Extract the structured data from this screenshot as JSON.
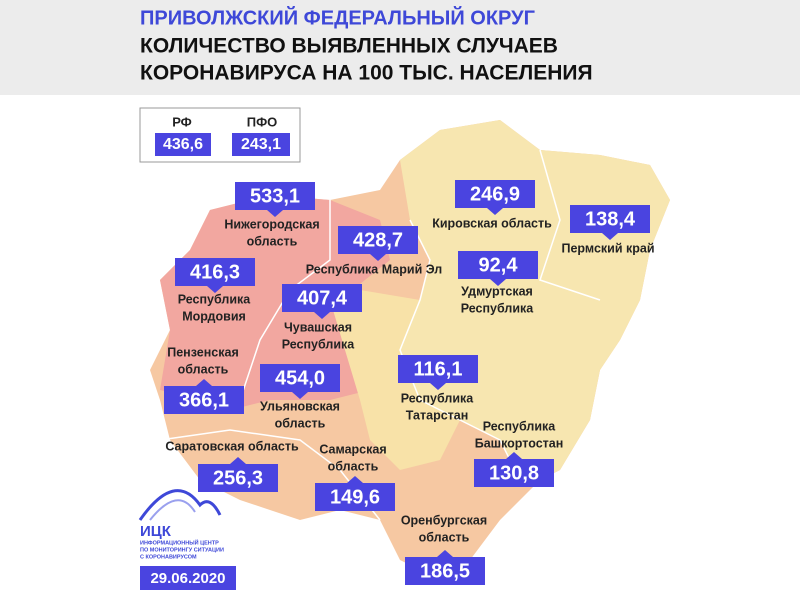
{
  "header": {
    "title": "ПРИВОЛЖСКИЙ ФЕДЕРАЛЬНЫЙ ОКРУГ",
    "subtitle": [
      "КОЛИЧЕСТВО ВЫЯВЛЕННЫХ СЛУЧАЕВ",
      "КОРОНАВИРУСА НА 100 ТЫС. НАСЕЛЕНИЯ"
    ]
  },
  "summary": [
    {
      "label": "РФ",
      "value": "436,6"
    },
    {
      "label": "ПФО",
      "value": "243,1"
    }
  ],
  "regions": [
    {
      "name": [
        "Нижегородская",
        "область"
      ],
      "value": "533,1"
    },
    {
      "name": [
        "Кировская область"
      ],
      "value": "246,9"
    },
    {
      "name": [
        "Пермский край"
      ],
      "value": "138,4"
    },
    {
      "name": [
        "Республика Марий Эл"
      ],
      "value": "428,7"
    },
    {
      "name": [
        "Удмуртская",
        "Республика"
      ],
      "value": "92,4"
    },
    {
      "name": [
        "Республика",
        "Мордовия"
      ],
      "value": "416,3"
    },
    {
      "name": [
        "Чувашская",
        "Республика"
      ],
      "value": "407,4"
    },
    {
      "name": [
        "Пензенская",
        "область"
      ],
      "value": "366,1"
    },
    {
      "name": [
        "Ульяновская",
        "область"
      ],
      "value": "454,0"
    },
    {
      "name": [
        "Республика",
        "Татарстан"
      ],
      "value": "116,1"
    },
    {
      "name": [
        "Республика",
        "Башкортостан"
      ],
      "value": "130,8"
    },
    {
      "name": [
        "Саратовская область"
      ],
      "value": "256,3"
    },
    {
      "name": [
        "Самарская",
        "область"
      ],
      "value": "149,6"
    },
    {
      "name": [
        "Оренбургская",
        "область"
      ],
      "value": "186,5"
    }
  ],
  "logo": {
    "name": "ИЦК",
    "caption": [
      "ИНФОРМАЦИОННЫЙ ЦЕНТР",
      "ПО МОНИТОРИНГУ СИТУАЦИИ",
      "С КОРОНАВИРУСОМ"
    ]
  },
  "date": "29.06.2020"
}
